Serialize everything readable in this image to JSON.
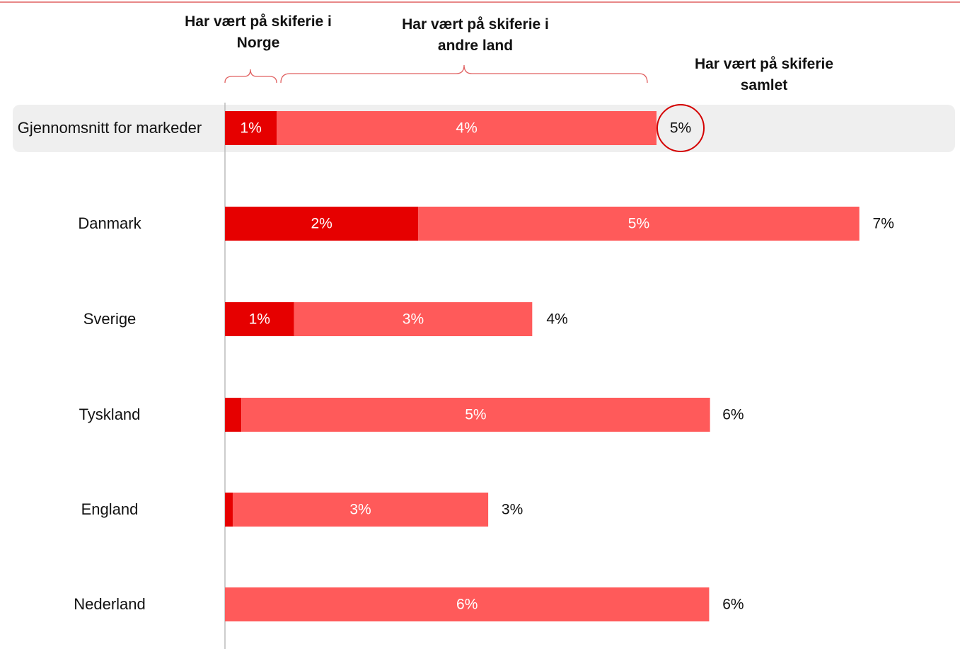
{
  "chart_data": {
    "type": "stacked-bar-horizontal",
    "categories": [
      "Gjennomsnitt for markeder",
      "Danmark",
      "Sverige",
      "Tyskland",
      "England",
      "Nederland"
    ],
    "series": [
      {
        "name": "Har vært på skiferie i Norge",
        "color": "#e60000",
        "values": [
          0.6,
          2.24,
          0.8,
          0.19,
          0.09,
          0
        ],
        "value_labels": [
          "1%",
          "2%",
          "1%",
          null,
          null,
          null
        ]
      },
      {
        "name": "Har vært på skiferie i andre land",
        "color": "#ff5a5a",
        "values": [
          4.4,
          5.11,
          2.76,
          5.43,
          2.96,
          5.61
        ],
        "value_labels": [
          "4%",
          "5%",
          "3%",
          "5%",
          "3%",
          "6%"
        ]
      }
    ],
    "total_name": "Har vært på skiferie samlet",
    "totals": [
      5.0,
      7.35,
      3.57,
      5.61,
      3.05,
      5.61
    ],
    "total_labels": [
      "5%",
      "7%",
      "4%",
      "6%",
      "3%",
      "6%"
    ],
    "xlim": [
      0,
      8.4
    ]
  }
}
